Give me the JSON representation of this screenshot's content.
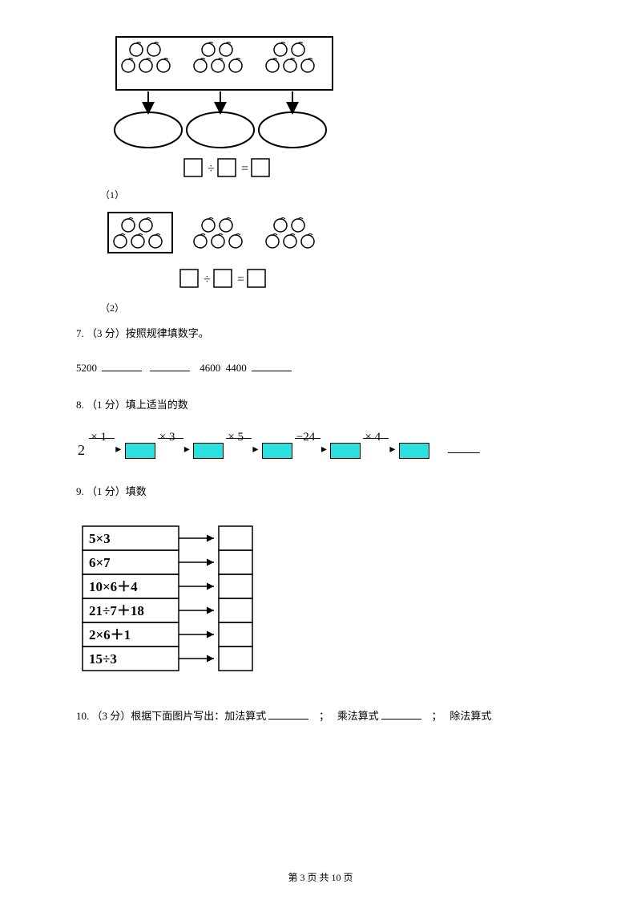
{
  "q6": {
    "sub1": "（1）",
    "sub2": "（2）",
    "eq_op": "÷",
    "eq_eq": "="
  },
  "q7": {
    "label": "7. （3 分）按照规律填数字。",
    "n1": "5200",
    "n2": "4600",
    "n3": "4400"
  },
  "q8": {
    "label": "8. （1 分）填上适当的数",
    "start": "2",
    "ops": [
      "× 1",
      "× 3",
      "× 5",
      "−24",
      "× 4"
    ],
    "box_color": "#2ce0e0"
  },
  "q9": {
    "label": "9. （1 分）填数",
    "rows": [
      "5×3",
      "6×7",
      "10×6＋4",
      "21÷7＋18",
      "2×6＋1",
      "15÷3"
    ]
  },
  "q10": {
    "label_a": "10.  （3 分）根据下面图片写出：加法算式",
    "sep": "；",
    "label_b": "乘法算式",
    "label_c": "除法算式"
  },
  "footer": {
    "text": "第 3 页 共 10 页"
  }
}
